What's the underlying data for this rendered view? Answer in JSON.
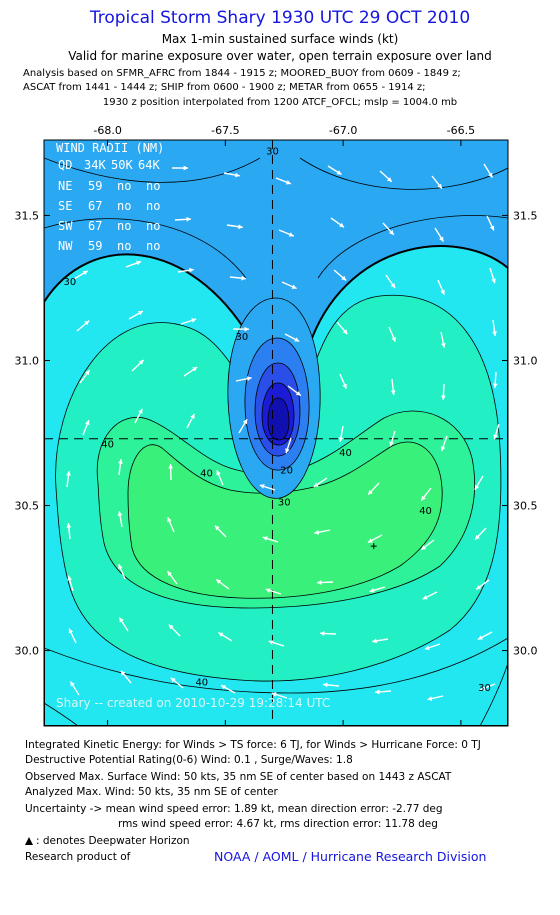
{
  "header": {
    "title": "Tropical Storm Shary 1930 UTC 29 OCT 2010",
    "subtitle1": "Max 1-min sustained surface winds (kt)",
    "subtitle2": "Valid for marine exposure over water, open terrain exposure over land",
    "analysis1": "Analysis based on SFMR_AFRC from 1844 - 1915 z; MOORED_BUOY from 0609 - 1849 z;",
    "analysis2": "ASCAT from 1441 - 1444 z; SHIP from 0600 - 1900 z; METAR from 0655 - 1914 z;",
    "analysis3": "1930 z position interpolated from 1200 ATCF_OFCL; mslp = 1004.0 mb"
  },
  "chart_data": {
    "type": "heatmap",
    "title": "Tropical Storm Shary 1930 UTC 29 OCT 2010",
    "xlim": [
      -68.27,
      -66.3
    ],
    "ylim": [
      29.74,
      31.76
    ],
    "x_ticks": [
      -68.0,
      -67.5,
      -67.0,
      -66.5
    ],
    "y_ticks": [
      30.0,
      30.5,
      31.0,
      31.5
    ],
    "x_tick_labels": [
      "-68.0",
      "-67.5",
      "-67.0",
      "-66.5"
    ],
    "y_tick_labels": [
      "30.0",
      "30.5",
      "31.0",
      "31.5"
    ],
    "center": {
      "lon": -67.3,
      "lat": 30.73
    },
    "max_wind_marker": {
      "lon": -66.87,
      "lat": 30.36
    },
    "contour_levels": [
      5,
      10,
      15,
      20,
      25,
      30,
      35,
      40,
      45
    ],
    "contour_labels": [
      {
        "text": "30",
        "lon": -67.3,
        "lat": 31.71
      },
      {
        "text": "30",
        "lon": -68.16,
        "lat": 31.26
      },
      {
        "text": "30",
        "lon": -67.43,
        "lat": 31.07
      },
      {
        "text": "30",
        "lon": -67.25,
        "lat": 30.5
      },
      {
        "text": "20",
        "lon": -67.24,
        "lat": 30.61
      },
      {
        "text": "40",
        "lon": -68.0,
        "lat": 30.7
      },
      {
        "text": "40",
        "lon": -67.58,
        "lat": 30.6
      },
      {
        "text": "40",
        "lon": -66.99,
        "lat": 30.67
      },
      {
        "text": "40",
        "lon": -66.65,
        "lat": 30.47
      },
      {
        "text": "40",
        "lon": -67.6,
        "lat": 29.88
      },
      {
        "text": "30",
        "lon": -66.4,
        "lat": 29.86
      }
    ],
    "colors": {
      "c0": "#1b1bd6",
      "c5": "#2a4ee8",
      "c15": "#2c7ff0",
      "c25": "#2aa8f2",
      "c30": "#22e6f0",
      "c35": "#22efc4",
      "c40": "#2ef29a",
      "c45": "#38f07a"
    },
    "wind_radii": {
      "title": "WIND RADII (NM)",
      "header": [
        "QD",
        "34K",
        "50K",
        "64K"
      ],
      "rows": [
        [
          "NE",
          "59",
          "no",
          "no"
        ],
        [
          "SE",
          "67",
          "no",
          "no"
        ],
        [
          "SW",
          "67",
          "no",
          "no"
        ],
        [
          "NW",
          "59",
          "no",
          "no"
        ]
      ]
    },
    "credit": "Shary -- created on 2010-10-29 19:28:14 UTC"
  },
  "footer": {
    "line1": "Integrated Kinetic Energy:  for Winds > TS force: 6 TJ,  for Winds > Hurricane Force: 0 TJ",
    "line2": "Destructive Potential Rating(0-6)   Wind: 0.1 , Surge/Waves: 1.8",
    "line3": "Observed Max. Surface Wind: 50 kts, 35 nm SE of center based on 1443 z ASCAT",
    "line4": "Analyzed Max. Wind: 50 kts, 35 nm SE of center",
    "line5": "Uncertainty -> mean wind speed error: 1.89 kt,   mean direction error:  -2.77 deg",
    "line6": "rms wind speed error: 4.67 kt,   rms direction error: 11.78 deg",
    "line7": ": denotes Deepwater Horizon",
    "line8": "Research product of",
    "credit": "NOAA / AOML / Hurricane Research Division"
  }
}
